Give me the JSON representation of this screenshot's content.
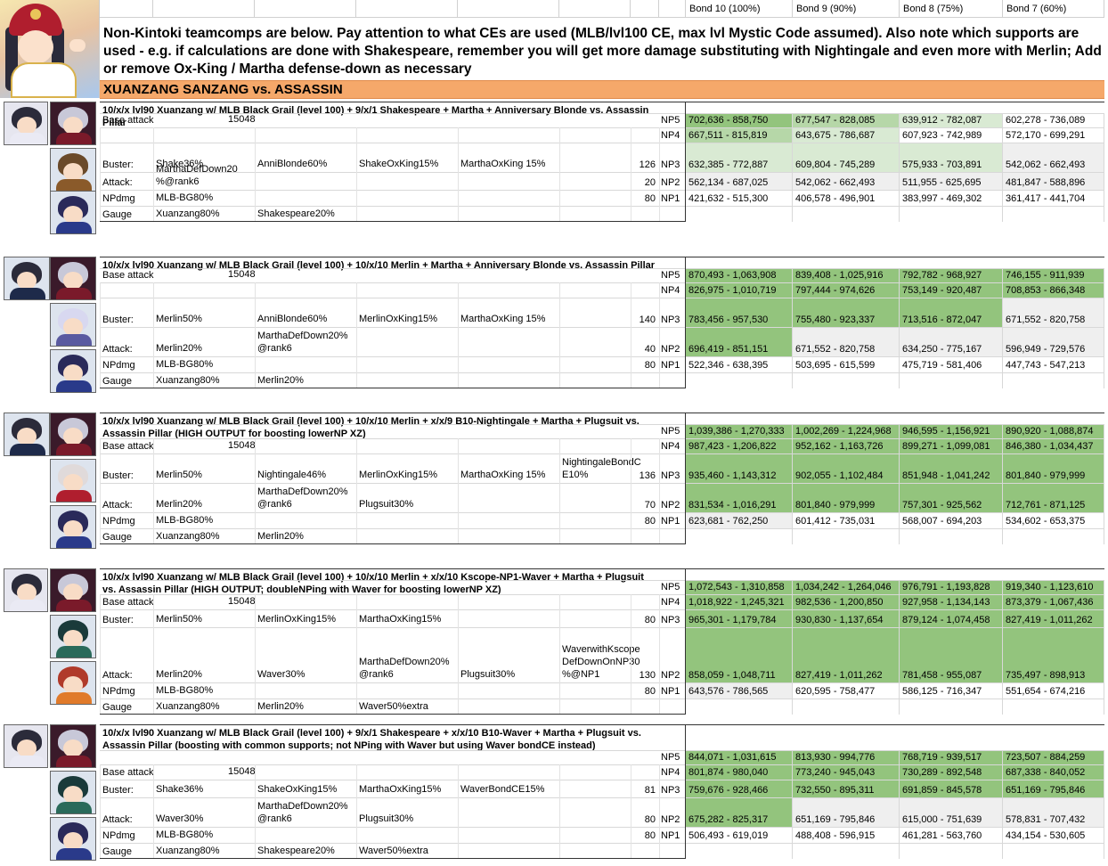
{
  "bond_headers": [
    "Bond 10 (100%)",
    "Bond 9 (90%)",
    "Bond 8 (75%)",
    "Bond 7 (60%)"
  ],
  "intro": "Non-Kintoki teamcomps are below. Pay attention to what CEs are used (MLB/lvl100 CE, max lvl Mystic Code assumed). Also note which supports are used - e.g. if calculations are done with Shakespeare, remember you will get more damage substituting with Nightingale and even more with Merlin; Add or remove Ox-King / Martha defense-down as necessary",
  "section_title": "XUANZANG SANZANG vs. ASSASSIN",
  "colors": {
    "green_dark": "#93c47d",
    "green_mid": "#b6d7a8",
    "green_light": "#d9ead3",
    "gray": "#efefef",
    "white": "#ffffff",
    "orange": "#f5a86a"
  },
  "blocks": [
    {
      "title": "10/x/x lvl90 Xuanzang w/ MLB Black Grail (level 100) + 9/x/1 Shakespeare + Martha + Anniversary Blonde vs. Assassin Pillar",
      "icons": [
        [
          "#2b2b3a",
          "#1e2a4a"
        ],
        [
          "#c8c8d8",
          "#7a1a2a"
        ],
        [
          "#6a4a2a",
          "#8a5a2a"
        ],
        [
          "#2a2a5a",
          "#2a3a8a"
        ]
      ],
      "rows": [
        {
          "label": "Base attack",
          "cells": [
            {
              "col": 1,
              "text": "15048",
              "align": "r"
            }
          ],
          "np": "NP5",
          "dmg": [
            "702,636 - 858,750",
            "677,547 - 828,085",
            "639,912 - 782,087",
            "602,278 - 736,089"
          ],
          "shade": [
            "g1",
            "g2",
            "g3",
            "w"
          ]
        },
        {
          "label": "",
          "cells": [],
          "np": "NP4",
          "dmg": [
            "667,511 - 815,819",
            "643,675 - 786,687",
            "607,923 - 742,989",
            "572,170 - 699,291"
          ],
          "shade": [
            "g2",
            "g3",
            "w",
            "w"
          ]
        },
        {
          "label": "Buster:",
          "cells": [
            {
              "col": 1,
              "text": "Shake36%"
            },
            {
              "col": 2,
              "text": "AnniBlonde60%"
            },
            {
              "col": 3,
              "text": "ShakeOxKing15%"
            },
            {
              "col": 4,
              "text": "MarthaOxKing 15%"
            }
          ],
          "value": "126",
          "np": "NP3",
          "dmg": [
            "632,385 - 772,887",
            "609,804 - 745,289",
            "575,933 - 703,891",
            "542,062 - 662,493"
          ],
          "shade": [
            "g3",
            "g3",
            "g3",
            "g4"
          ]
        },
        {
          "label": "Attack:",
          "cells": [
            {
              "col": 1,
              "text": "MarthaDefDown20 %@rank6"
            }
          ],
          "value": "20",
          "np": "NP2",
          "dmg": [
            "562,134 - 687,025",
            "542,062 - 662,493",
            "511,955 - 625,695",
            "481,847 - 588,896"
          ],
          "shade": [
            "g4",
            "g4",
            "g4",
            "g4"
          ]
        },
        {
          "label": "NPdmg",
          "cells": [
            {
              "col": 1,
              "text": "MLB-BG80%"
            }
          ],
          "value": "80",
          "np": "NP1",
          "dmg": [
            "421,632 - 515,300",
            "406,578 - 496,901",
            "383,997 - 469,302",
            "361,417 - 441,704"
          ],
          "shade": [
            "w",
            "w",
            "w",
            "w"
          ]
        },
        {
          "label": "Gauge",
          "cells": [
            {
              "col": 1,
              "text": "Xuanzang80%"
            },
            {
              "col": 2,
              "text": "Shakespeare20%"
            }
          ],
          "np": "",
          "dmg": [
            "",
            "",
            "",
            ""
          ],
          "shade": [
            "w",
            "w",
            "w",
            "w"
          ]
        }
      ]
    },
    {
      "title": "10/x/x lvl90 Xuanzang w/ MLB Black Grail (level 100) + 10/x/10 Merlin + Martha + Anniversary Blonde vs. Assassin Pillar",
      "icons": [
        [
          "#2b2b3a",
          "#1e2a4a"
        ],
        [
          "#c8c8d8",
          "#7a1a2a"
        ],
        [
          "#d8d8f0",
          "#5a5aa0"
        ],
        [
          "#2a2a5a",
          "#2a3a8a"
        ]
      ],
      "rows": [
        {
          "label": "Base attack",
          "cells": [
            {
              "col": 1,
              "text": "15048",
              "align": "r"
            }
          ],
          "np": "NP5",
          "dmg": [
            "870,493 - 1,063,908",
            "839,408 - 1,025,916",
            "792,782 - 968,927",
            "746,155 - 911,939"
          ],
          "shade": [
            "g1",
            "g1",
            "g1",
            "g1"
          ]
        },
        {
          "label": "",
          "cells": [],
          "np": "NP4",
          "dmg": [
            "826,975 - 1,010,719",
            "797,444 - 974,626",
            "753,149 - 920,487",
            "708,853 - 866,348"
          ],
          "shade": [
            "g1",
            "g1",
            "g1",
            "g1"
          ]
        },
        {
          "label": "Buster:",
          "cells": [
            {
              "col": 1,
              "text": "Merlin50%"
            },
            {
              "col": 2,
              "text": "AnniBlonde60%"
            },
            {
              "col": 3,
              "text": "MerlinOxKing15%"
            },
            {
              "col": 4,
              "text": "MarthaOxKing 15%"
            }
          ],
          "value": "140",
          "np": "NP3",
          "dmg": [
            "783,456 - 957,530",
            "755,480 - 923,337",
            "713,516 - 872,047",
            "671,552 - 820,758"
          ],
          "shade": [
            "g1",
            "g1",
            "g1",
            "g4"
          ]
        },
        {
          "label": "Attack:",
          "cells": [
            {
              "col": 1,
              "text": "Merlin20%"
            },
            {
              "col": 2,
              "text": "MarthaDefDown20% @rank6"
            }
          ],
          "value": "40",
          "np": "NP2",
          "dmg": [
            "696,419 - 851,151",
            "671,552 - 820,758",
            "634,250 - 775,167",
            "596,949 - 729,576"
          ],
          "shade": [
            "g1",
            "g4",
            "g4",
            "g4"
          ]
        },
        {
          "label": "NPdmg",
          "cells": [
            {
              "col": 1,
              "text": "MLB-BG80%"
            }
          ],
          "value": "80",
          "np": "NP1",
          "dmg": [
            "522,346 - 638,395",
            "503,695 - 615,599",
            "475,719 - 581,406",
            "447,743 - 547,213"
          ],
          "shade": [
            "w",
            "w",
            "w",
            "w"
          ]
        },
        {
          "label": "Gauge",
          "cells": [
            {
              "col": 1,
              "text": "Xuanzang80%"
            },
            {
              "col": 2,
              "text": "Merlin20%"
            }
          ],
          "np": "",
          "dmg": [
            "",
            "",
            "",
            ""
          ],
          "shade": [
            "w",
            "w",
            "w",
            "w"
          ]
        }
      ]
    },
    {
      "title": "10/x/x lvl90 Xuanzang w/ MLB Black Grail (level 100) + 10/x/10 Merlin + x/x/9 B10-Nightingale + Martha + Plugsuit vs. Assassin Pillar (HIGH OUTPUT for boosting lowerNP XZ)",
      "icons": [
        [
          "#2b2b3a",
          "#1e2a4a"
        ],
        [
          "#c8c8d8",
          "#7a1a2a"
        ],
        [
          "#e0dada",
          "#b01e2e"
        ],
        [
          "#2a2a5a",
          "#2a3a8a"
        ]
      ],
      "rows": [
        {
          "label": "",
          "cells": [],
          "np": "NP5",
          "dmg": [
            "1,039,386 - 1,270,333",
            "1,002,269 - 1,224,968",
            "946,595 - 1,156,921",
            "890,920 - 1,088,874"
          ],
          "shade": [
            "g1",
            "g1",
            "g1",
            "g1"
          ]
        },
        {
          "label": "Base attack",
          "cells": [
            {
              "col": 1,
              "text": "15048",
              "align": "r"
            }
          ],
          "np": "NP4",
          "dmg": [
            "987,423 - 1,206,822",
            "952,162 - 1,163,726",
            "899,271 - 1,099,081",
            "846,380 - 1,034,437"
          ],
          "shade": [
            "g1",
            "g1",
            "g1",
            "g1"
          ]
        },
        {
          "label": "Buster:",
          "cells": [
            {
              "col": 1,
              "text": "Merlin50%"
            },
            {
              "col": 2,
              "text": "Nightingale46%"
            },
            {
              "col": 3,
              "text": "MerlinOxKing15%"
            },
            {
              "col": 4,
              "text": "MarthaOxKing 15%"
            },
            {
              "col": 5,
              "text": "NightingaleBondC E10%"
            }
          ],
          "value": "136",
          "np": "NP3",
          "dmg": [
            "935,460 - 1,143,312",
            "902,055 - 1,102,484",
            "851,948 - 1,041,242",
            "801,840 - 979,999"
          ],
          "shade": [
            "g1",
            "g1",
            "g1",
            "g1"
          ]
        },
        {
          "label": "Attack:",
          "cells": [
            {
              "col": 1,
              "text": "Merlin20%"
            },
            {
              "col": 2,
              "text": "MarthaDefDown20% @rank6"
            },
            {
              "col": 3,
              "text": "Plugsuit30%"
            }
          ],
          "value": "70",
          "np": "NP2",
          "dmg": [
            "831,534 - 1,016,291",
            "801,840 - 979,999",
            "757,301 - 925,562",
            "712,761 - 871,125"
          ],
          "shade": [
            "g1",
            "g1",
            "g1",
            "g1"
          ]
        },
        {
          "label": "NPdmg",
          "cells": [
            {
              "col": 1,
              "text": "MLB-BG80%"
            }
          ],
          "value": "80",
          "np": "NP1",
          "dmg": [
            "623,681 - 762,250",
            "601,412 - 735,031",
            "568,007 - 694,203",
            "534,602 - 653,375"
          ],
          "shade": [
            "g4",
            "w",
            "w",
            "w"
          ]
        },
        {
          "label": "Gauge",
          "cells": [
            {
              "col": 1,
              "text": "Xuanzang80%"
            },
            {
              "col": 2,
              "text": "Merlin20%"
            }
          ],
          "np": "",
          "dmg": [
            "",
            "",
            "",
            ""
          ],
          "shade": [
            "w",
            "w",
            "w",
            "w"
          ]
        }
      ]
    },
    {
      "title": "10/x/x lvl90 Xuanzang w/ MLB Black Grail (level 100) + 10/x/10 Merlin + x/x/10 Kscope-NP1-Waver + Martha + Plugsuit vs. Assassin Pillar (HIGH OUTPUT; doubleNPing with Waver for boosting lowerNP XZ)",
      "icons": [
        [
          "#2b2b3a",
          "#1e2a4a"
        ],
        [
          "#c8c8d8",
          "#7a1a2a"
        ],
        [
          "#1a3a3a",
          "#2a6a5a"
        ],
        [
          "#b03a2a",
          "#e07a2a"
        ]
      ],
      "rows": [
        {
          "label": "",
          "cells": [],
          "np": "NP5",
          "dmg": [
            "1,072,543 - 1,310,858",
            "1,034,242 - 1,264,046",
            "976,791 - 1,193,828",
            "919,340 - 1,123,610"
          ],
          "shade": [
            "g1",
            "g1",
            "g1",
            "g1"
          ]
        },
        {
          "label": "Base attack",
          "cells": [
            {
              "col": 1,
              "text": "15048",
              "align": "r"
            }
          ],
          "np": "NP4",
          "dmg": [
            "1,018,922 - 1,245,321",
            "982,536 - 1,200,850",
            "927,958 - 1,134,143",
            "873,379 - 1,067,436"
          ],
          "shade": [
            "g1",
            "g1",
            "g1",
            "g1"
          ]
        },
        {
          "label": "Buster:",
          "cells": [
            {
              "col": 1,
              "text": "Merlin50%"
            },
            {
              "col": 2,
              "text": "MerlinOxKing15%"
            },
            {
              "col": 3,
              "text": "MarthaOxKing15%"
            }
          ],
          "value": "80",
          "np": "NP3",
          "dmg": [
            "965,301 - 1,179,784",
            "930,830 - 1,137,654",
            "879,124 - 1,074,458",
            "827,419 - 1,011,262"
          ],
          "shade": [
            "g1",
            "g1",
            "g1",
            "g1"
          ]
        },
        {
          "label": "Attack:",
          "cells": [
            {
              "col": 1,
              "text": "Merlin20%"
            },
            {
              "col": 2,
              "text": "Waver30%"
            },
            {
              "col": 3,
              "text": "MarthaDefDown20% @rank6"
            },
            {
              "col": 4,
              "text": "Plugsuit30%"
            },
            {
              "col": 5,
              "text": "WaverwithKscope DefDownOnNP30 %@NP1"
            }
          ],
          "value": "130",
          "np": "NP2",
          "dmg": [
            "858,059 - 1,048,711",
            "827,419 - 1,011,262",
            "781,458 - 955,087",
            "735,497 - 898,913"
          ],
          "shade": [
            "g1",
            "g1",
            "g1",
            "g1"
          ]
        },
        {
          "label": "NPdmg",
          "cells": [
            {
              "col": 1,
              "text": "MLB-BG80%"
            }
          ],
          "value": "80",
          "np": "NP1",
          "dmg": [
            "643,576 - 786,565",
            "620,595 - 758,477",
            "586,125 - 716,347",
            "551,654 - 674,216"
          ],
          "shade": [
            "g4",
            "w",
            "w",
            "w"
          ]
        },
        {
          "label": "Gauge",
          "cells": [
            {
              "col": 1,
              "text": "Xuanzang80%"
            },
            {
              "col": 2,
              "text": "Merlin20%"
            },
            {
              "col": 3,
              "text": "Waver50%extra"
            }
          ],
          "np": "",
          "dmg": [
            "",
            "",
            "",
            ""
          ],
          "shade": [
            "w",
            "w",
            "w",
            "w"
          ]
        }
      ]
    },
    {
      "title": "10/x/x lvl90 Xuanzang w/ MLB Black Grail (level 100) + 9/x/1 Shakespeare + x/x/10 B10-Waver + Martha + Plugsuit vs. Assassin Pillar (boosting with common supports; not NPing with Waver but using Waver bondCE instead)",
      "icons": [
        [
          "#2b2b3a",
          "#1e2a4a"
        ],
        [
          "#c8c8d8",
          "#7a1a2a"
        ],
        [
          "#1a3a3a",
          "#2a6a5a"
        ],
        [
          "#2a2a5a",
          "#2a3a8a"
        ]
      ],
      "rows": [
        {
          "label": "",
          "cells": [],
          "np": "NP5",
          "dmg": [
            "844,071 - 1,031,615",
            "813,930 - 994,776",
            "768,719 - 939,517",
            "723,507 - 884,259"
          ],
          "shade": [
            "g1",
            "g1",
            "g1",
            "g1"
          ]
        },
        {
          "label": "Base attack",
          "cells": [
            {
              "col": 1,
              "text": "15048",
              "align": "r"
            }
          ],
          "np": "NP4",
          "dmg": [
            "801,874 - 980,040",
            "773,240 - 945,043",
            "730,289 - 892,548",
            "687,338 - 840,052"
          ],
          "shade": [
            "g1",
            "g1",
            "g1",
            "g1"
          ]
        },
        {
          "label": "Buster:",
          "cells": [
            {
              "col": 1,
              "text": "Shake36%"
            },
            {
              "col": 2,
              "text": "ShakeOxKing15%"
            },
            {
              "col": 3,
              "text": "MarthaOxKing15%"
            },
            {
              "col": 4,
              "text": "WaverBondCE15%"
            }
          ],
          "value": "81",
          "np": "NP3",
          "dmg": [
            "759,676 - 928,466",
            "732,550 - 895,311",
            "691,859 - 845,578",
            "651,169 - 795,846"
          ],
          "shade": [
            "g1",
            "g1",
            "g1",
            "g1"
          ]
        },
        {
          "label": "Attack:",
          "cells": [
            {
              "col": 1,
              "text": "Waver30%"
            },
            {
              "col": 2,
              "text": "MarthaDefDown20% @rank6"
            },
            {
              "col": 3,
              "text": "Plugsuit30%"
            }
          ],
          "value": "80",
          "np": "NP2",
          "dmg": [
            "675,282 - 825,317",
            "651,169 - 795,846",
            "615,000 - 751,639",
            "578,831 - 707,432"
          ],
          "shade": [
            "g1",
            "g4",
            "g4",
            "g4"
          ]
        },
        {
          "label": "NPdmg",
          "cells": [
            {
              "col": 1,
              "text": "MLB-BG80%"
            }
          ],
          "value": "80",
          "np": "NP1",
          "dmg": [
            "506,493 - 619,019",
            "488,408 - 596,915",
            "461,281 - 563,760",
            "434,154 - 530,605"
          ],
          "shade": [
            "w",
            "w",
            "w",
            "w"
          ]
        },
        {
          "label": "Gauge",
          "cells": [
            {
              "col": 1,
              "text": "Xuanzang80%"
            },
            {
              "col": 2,
              "text": "Shakespeare20%"
            },
            {
              "col": 3,
              "text": "Waver50%extra"
            }
          ],
          "np": "",
          "dmg": [
            "",
            "",
            "",
            ""
          ],
          "shade": [
            "w",
            "w",
            "w",
            "w"
          ]
        }
      ]
    }
  ]
}
